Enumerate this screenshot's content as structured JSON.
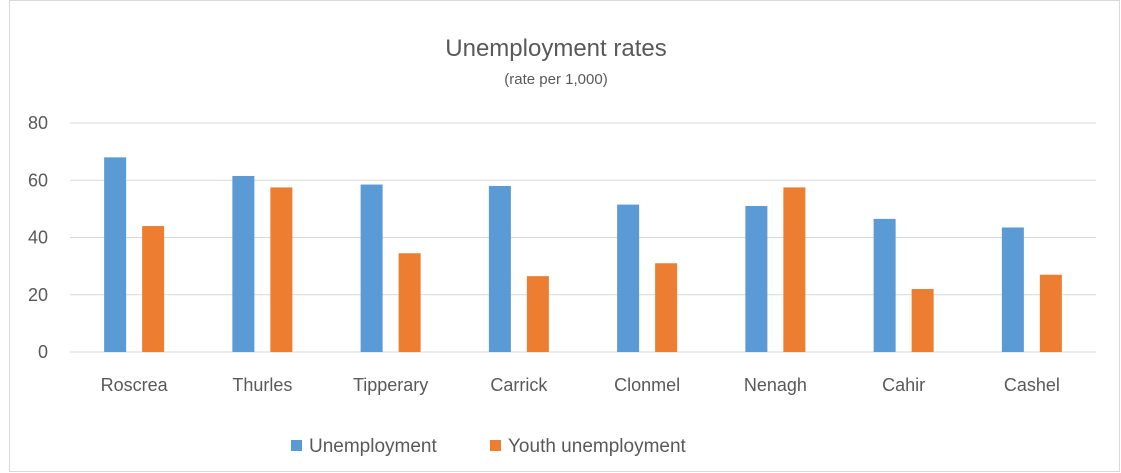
{
  "chart_data": {
    "type": "bar",
    "title": "Unemployment rates",
    "subtitle": "(rate per 1,000)",
    "xlabel": "",
    "ylabel": "",
    "ylim": [
      0,
      80
    ],
    "yticks": [
      0,
      20,
      40,
      60,
      80
    ],
    "grid": true,
    "legend_position": "bottom",
    "categories": [
      "Roscrea",
      "Thurles",
      "Tipperary",
      "Carrick",
      "Clonmel",
      "Nenagh",
      "Cahir",
      "Cashel"
    ],
    "series": [
      {
        "name": "Unemployment",
        "color": "#5b9bd5",
        "values": [
          68,
          61.5,
          58.5,
          58,
          51.5,
          51,
          46.5,
          43.5
        ]
      },
      {
        "name": "Youth unemployment",
        "color": "#ed7d31",
        "values": [
          44,
          57.5,
          34.5,
          26.5,
          31,
          57.5,
          22,
          27
        ]
      }
    ]
  }
}
